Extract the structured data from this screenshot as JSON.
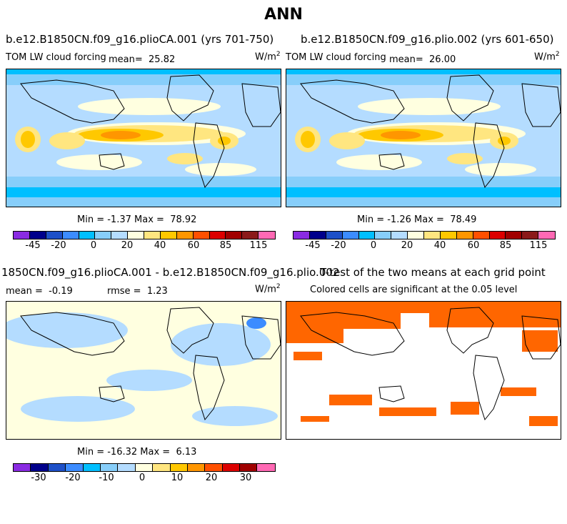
{
  "page_title": "ANN",
  "chart_data": [
    {
      "type": "heatmap",
      "title": "b.e12.B1850CN.f09_g16.plioCA.001 (yrs 701-750)",
      "variable": "TOM LW cloud forcing",
      "mean_label": "mean=",
      "mean": "25.82",
      "units_base": "W/m",
      "units_exp": "2",
      "min_label": "Min =",
      "min": "-1.37",
      "max_label": "Max =",
      "max": "78.92",
      "colorbar_ticks": [
        "-45",
        "-20",
        "0",
        "20",
        "40",
        "60",
        "85",
        "115"
      ],
      "colorbar_colors": [
        "#8a2be2",
        "#00008b",
        "#1e50c8",
        "#3c8cff",
        "#00bfff",
        "#87cefa",
        "#b4dcff",
        "#ffffe0",
        "#ffe680",
        "#ffc800",
        "#ff9600",
        "#ff5000",
        "#dc0000",
        "#a00000",
        "#8b1a1a",
        "#ff69b4"
      ]
    },
    {
      "type": "heatmap",
      "title": "b.e12.B1850CN.f09_g16.plio.002 (yrs 601-650)",
      "variable": "TOM LW cloud forcing",
      "mean_label": "mean=",
      "mean": "26.00",
      "units_base": "W/m",
      "units_exp": "2",
      "min_label": "Min =",
      "min": "-1.26",
      "max_label": "Max =",
      "max": "78.49",
      "colorbar_ticks": [
        "-45",
        "-20",
        "0",
        "20",
        "40",
        "60",
        "85",
        "115"
      ],
      "colorbar_colors": [
        "#8a2be2",
        "#00008b",
        "#1e50c8",
        "#3c8cff",
        "#00bfff",
        "#87cefa",
        "#b4dcff",
        "#ffffe0",
        "#ffe680",
        "#ffc800",
        "#ff9600",
        "#ff5000",
        "#dc0000",
        "#a00000",
        "#8b1a1a",
        "#ff69b4"
      ]
    },
    {
      "type": "heatmap",
      "title": "1850CN.f09_g16.plioCA.001 - b.e12.B1850CN.f09_g16.plio.002",
      "mean_label": "mean =",
      "mean": "-0.19",
      "rmse_label": "rmse =",
      "rmse": "1.23",
      "units_base": "W/m",
      "units_exp": "2",
      "min_label": "Min =",
      "min": "-16.32",
      "max_label": "Max =",
      "max": "6.13",
      "colorbar_ticks": [
        "-30",
        "-20",
        "-10",
        "0",
        "10",
        "20",
        "30"
      ],
      "colorbar_colors": [
        "#8a2be2",
        "#00008b",
        "#1e50c8",
        "#3c8cff",
        "#00bfff",
        "#87cefa",
        "#b4dcff",
        "#ffffe0",
        "#ffe680",
        "#ffc800",
        "#ff9600",
        "#ff5000",
        "#dc0000",
        "#a00000",
        "#ff69b4"
      ]
    },
    {
      "type": "heatmap",
      "title": "T-test of the two means at each grid point",
      "subtitle": "Colored cells are significant at the 0.05 level",
      "significant_color": "#ff6600"
    }
  ]
}
